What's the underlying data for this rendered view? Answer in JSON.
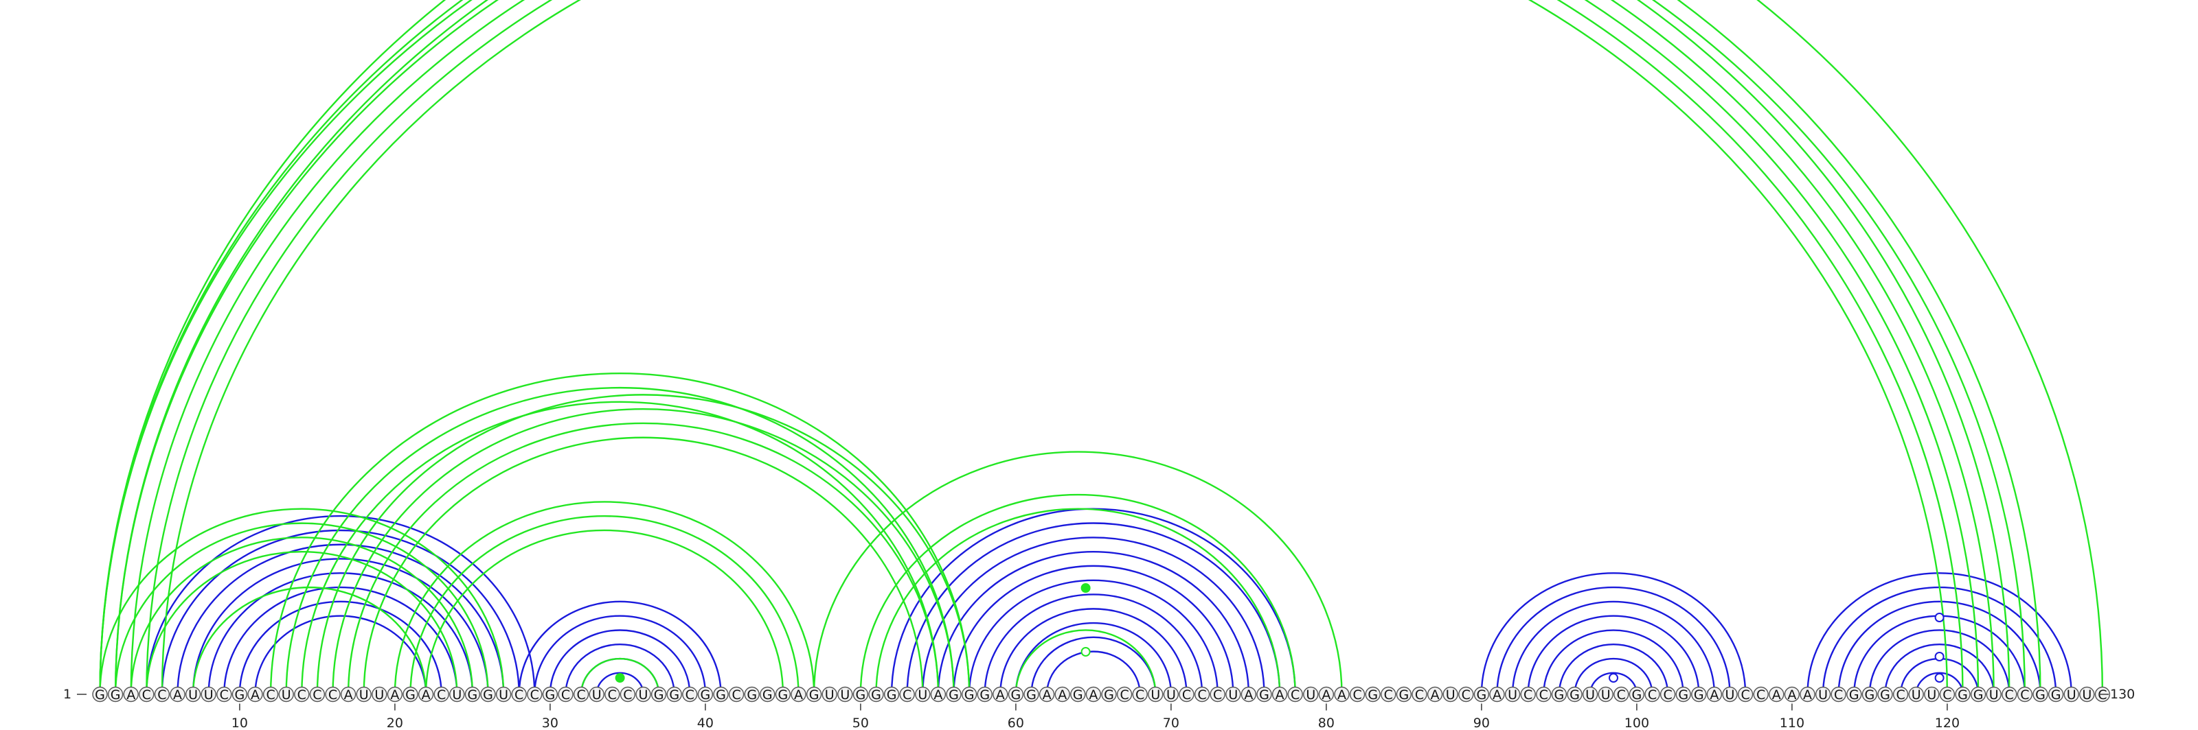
{
  "sequence": "GGACCAUUCGACUCCCAUUAGACUGGUCCGCCUCCUGGCGGCGGGAGUUGGGCUAGGGAGGAAGAGCCUUCCCUAGACUAACGCGCAUCGAUCCGGUUCGCCGGAUCCAAAUCGGGCUUCGGUCCGGUUC",
  "start_label": "1",
  "end_label": "130",
  "ticks": [
    {
      "pos": 10,
      "label": "10"
    },
    {
      "pos": 20,
      "label": "20"
    },
    {
      "pos": 30,
      "label": "30"
    },
    {
      "pos": 40,
      "label": "40"
    },
    {
      "pos": 50,
      "label": "50"
    },
    {
      "pos": 60,
      "label": "60"
    },
    {
      "pos": 70,
      "label": "70"
    },
    {
      "pos": 80,
      "label": "80"
    },
    {
      "pos": 90,
      "label": "90"
    },
    {
      "pos": 100,
      "label": "100"
    },
    {
      "pos": 110,
      "label": "110"
    },
    {
      "pos": 120,
      "label": "120"
    }
  ],
  "colors": {
    "structure_a": "#1a1adc",
    "structure_b": "#22e622"
  },
  "arcs": {
    "blue": [
      [
        4,
        29
      ],
      [
        5,
        28
      ],
      [
        6,
        27
      ],
      [
        7,
        26
      ],
      [
        8,
        25
      ],
      [
        9,
        24
      ],
      [
        10,
        23
      ],
      [
        11,
        22
      ],
      [
        28,
        41
      ],
      [
        29,
        40
      ],
      [
        30,
        39
      ],
      [
        31,
        38
      ],
      [
        32,
        37
      ],
      [
        33,
        36
      ],
      [
        52,
        78
      ],
      [
        53,
        77
      ],
      [
        54,
        76
      ],
      [
        55,
        75
      ],
      [
        56,
        74
      ],
      [
        57,
        73
      ],
      [
        58,
        72
      ],
      [
        59,
        71
      ],
      [
        60,
        70
      ],
      [
        61,
        69
      ],
      [
        62,
        68
      ],
      [
        90,
        107
      ],
      [
        91,
        106
      ],
      [
        92,
        105
      ],
      [
        93,
        104
      ],
      [
        94,
        103
      ],
      [
        95,
        102
      ],
      [
        96,
        101
      ],
      [
        97,
        100
      ],
      [
        111,
        128
      ],
      [
        112,
        127
      ],
      [
        113,
        126
      ],
      [
        114,
        125
      ],
      [
        115,
        124
      ],
      [
        116,
        123
      ],
      [
        117,
        122
      ],
      [
        118,
        121
      ]
    ],
    "green": [
      [
        1,
        124
      ],
      [
        2,
        123
      ],
      [
        3,
        122
      ],
      [
        4,
        121
      ],
      [
        5,
        120
      ],
      [
        1,
        126
      ],
      [
        2,
        125
      ],
      [
        1,
        130
      ],
      [
        1,
        27
      ],
      [
        2,
        26
      ],
      [
        3,
        25
      ],
      [
        4,
        24
      ],
      [
        7,
        22
      ],
      [
        15,
        57
      ],
      [
        16,
        56
      ],
      [
        17,
        55
      ],
      [
        18,
        54
      ],
      [
        12,
        57
      ],
      [
        13,
        56
      ],
      [
        14,
        55
      ],
      [
        20,
        47
      ],
      [
        21,
        46
      ],
      [
        22,
        45
      ],
      [
        47,
        81
      ],
      [
        50,
        78
      ],
      [
        51,
        77
      ],
      [
        60,
        69
      ],
      [
        32,
        37
      ]
    ]
  },
  "markers": [
    {
      "pos": 64.5,
      "height": 155,
      "kind": "filled",
      "color": "structure_b"
    },
    {
      "pos": 64.5,
      "height": 62,
      "kind": "open",
      "color": "structure_b"
    },
    {
      "pos": 34.5,
      "height": 24,
      "kind": "filled",
      "color": "structure_b"
    },
    {
      "pos": 98.5,
      "height": 24,
      "kind": "open",
      "color": "structure_a"
    },
    {
      "pos": 119.5,
      "height": 112,
      "kind": "open",
      "color": "structure_a"
    },
    {
      "pos": 119.5,
      "height": 55,
      "kind": "open",
      "color": "structure_a"
    },
    {
      "pos": 119.5,
      "height": 24,
      "kind": "open",
      "color": "structure_a"
    }
  ]
}
